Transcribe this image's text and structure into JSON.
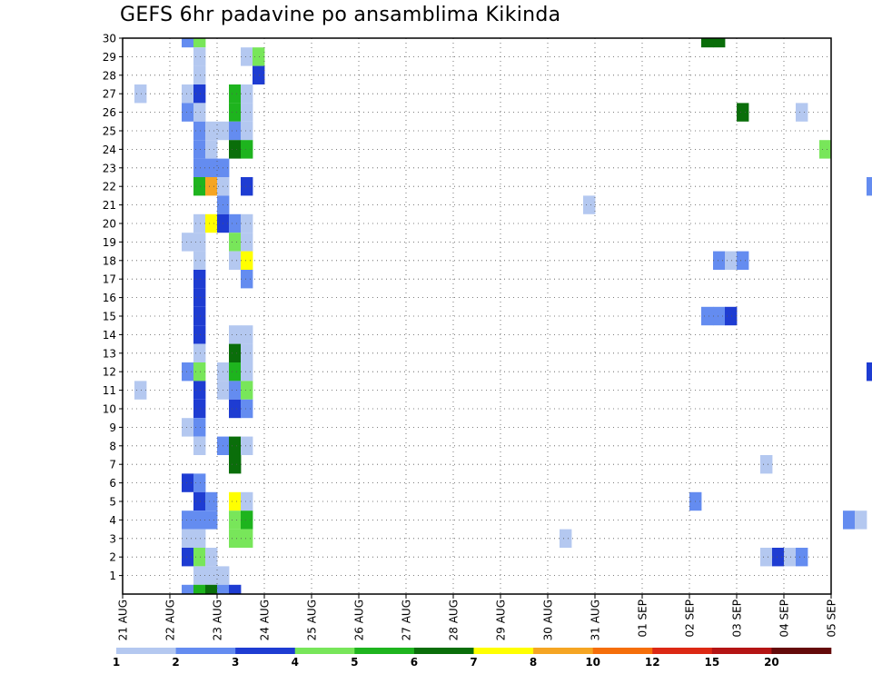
{
  "chart_data": {
    "type": "heatmap",
    "title": "GEFS 6hr padavine po ansamblima Kikinda",
    "xlabel": "",
    "ylabel": "",
    "x_ticks": [
      "21 AUG",
      "22 AUG",
      "23 AUG",
      "24 AUG",
      "25 AUG",
      "26 AUG",
      "27 AUG",
      "28 AUG",
      "29 AUG",
      "30 AUG",
      "31 AUG",
      "01 SEP",
      "02 SEP",
      "03 SEP",
      "04 SEP",
      "05 SEP"
    ],
    "y_ticks": [
      1,
      2,
      3,
      4,
      5,
      6,
      7,
      8,
      9,
      10,
      11,
      12,
      13,
      14,
      15,
      16,
      17,
      18,
      19,
      20,
      21,
      22,
      23,
      24,
      25,
      26,
      27,
      28,
      29,
      30
    ],
    "ylim": [
      0,
      30
    ],
    "time_steps_per_day": 4,
    "grid": "dotted",
    "legend": {
      "placement": "bottom",
      "thresholds": [
        "1",
        "2",
        "3",
        "4",
        "5",
        "6",
        "7",
        "8",
        "10",
        "12",
        "15",
        "20"
      ],
      "colors": [
        "#b4c8f0",
        "#648cf0",
        "#1e3cd2",
        "#78e65a",
        "#1eb41e",
        "#0a6e0a",
        "#ffff00",
        "#f5a523",
        "#f56e0a",
        "#dc2814",
        "#b41414",
        "#640a0a"
      ]
    },
    "cells": [
      {
        "m": 30,
        "t": [
          [
            5,
            1
          ],
          [
            6,
            3
          ],
          [
            49,
            5
          ],
          [
            50,
            5
          ],
          [
            78,
            0
          ]
        ]
      },
      {
        "m": 29,
        "t": [
          [
            6,
            0
          ],
          [
            10,
            0
          ],
          [
            11,
            3
          ],
          [
            72,
            4
          ],
          [
            73,
            5
          ],
          [
            74,
            1
          ],
          [
            76,
            0
          ],
          [
            77,
            1
          ]
        ]
      },
      {
        "m": 28,
        "t": [
          [
            6,
            0
          ],
          [
            11,
            2
          ],
          [
            73,
            0
          ],
          [
            80,
            1
          ]
        ]
      },
      {
        "m": 27,
        "t": [
          [
            1,
            0
          ],
          [
            5,
            0
          ],
          [
            6,
            2
          ],
          [
            9,
            4
          ],
          [
            10,
            0
          ],
          [
            64,
            2
          ],
          [
            69,
            1
          ],
          [
            75,
            1
          ],
          [
            76,
            0
          ],
          [
            107,
            1
          ]
        ]
      },
      {
        "m": 26,
        "t": [
          [
            5,
            1
          ],
          [
            6,
            0
          ],
          [
            9,
            4
          ],
          [
            10,
            0
          ],
          [
            52,
            5
          ],
          [
            57,
            0
          ],
          [
            76,
            1
          ],
          [
            81,
            6
          ],
          [
            82,
            8
          ],
          [
            84,
            8
          ],
          [
            85,
            2
          ],
          [
            86,
            1
          ]
        ]
      },
      {
        "m": 25,
        "t": [
          [
            6,
            1
          ],
          [
            7,
            0
          ],
          [
            8,
            0
          ],
          [
            9,
            1
          ],
          [
            10,
            0
          ]
        ]
      },
      {
        "m": 24,
        "t": [
          [
            6,
            1
          ],
          [
            7,
            0
          ],
          [
            9,
            5
          ],
          [
            10,
            4
          ],
          [
            59,
            3
          ],
          [
            70,
            0
          ],
          [
            71,
            0
          ],
          [
            72,
            0
          ],
          [
            73,
            2
          ],
          [
            74,
            4
          ],
          [
            75,
            6
          ],
          [
            108,
            0
          ],
          [
            109,
            2
          ],
          [
            110,
            0
          ]
        ]
      },
      {
        "m": 23,
        "t": [
          [
            6,
            1
          ],
          [
            7,
            1
          ],
          [
            8,
            1
          ],
          [
            71,
            0
          ]
        ]
      },
      {
        "m": 22,
        "t": [
          [
            6,
            4
          ],
          [
            7,
            7
          ],
          [
            8,
            0
          ],
          [
            10,
            2
          ],
          [
            63,
            1
          ],
          [
            71,
            4
          ],
          [
            72,
            0
          ],
          [
            83,
            0
          ]
        ]
      },
      {
        "m": 21,
        "t": [
          [
            8,
            1
          ],
          [
            39,
            0
          ],
          [
            83,
            0
          ],
          [
            84,
            3
          ]
        ]
      },
      {
        "m": 20,
        "t": [
          [
            6,
            0
          ],
          [
            7,
            6
          ],
          [
            8,
            2
          ],
          [
            9,
            1
          ],
          [
            10,
            0
          ],
          [
            73,
            0
          ],
          [
            75,
            2
          ],
          [
            107,
            0
          ]
        ]
      },
      {
        "m": 19,
        "t": [
          [
            5,
            0
          ],
          [
            6,
            0
          ],
          [
            9,
            3
          ],
          [
            10,
            0
          ],
          [
            84,
            0
          ]
        ]
      },
      {
        "m": 18,
        "t": [
          [
            6,
            0
          ],
          [
            9,
            0
          ],
          [
            10,
            6
          ],
          [
            50,
            1
          ],
          [
            51,
            0
          ],
          [
            52,
            1
          ],
          [
            111,
            0
          ]
        ]
      },
      {
        "m": 17,
        "t": [
          [
            6,
            2
          ],
          [
            10,
            1
          ],
          [
            74,
            3
          ]
        ]
      },
      {
        "m": 16,
        "t": [
          [
            6,
            2
          ],
          [
            80,
            0
          ]
        ]
      },
      {
        "m": 15,
        "t": [
          [
            6,
            2
          ],
          [
            49,
            1
          ],
          [
            50,
            1
          ],
          [
            51,
            2
          ],
          [
            76,
            0
          ],
          [
            111,
            0
          ]
        ]
      },
      {
        "m": 14,
        "t": [
          [
            6,
            2
          ],
          [
            9,
            0
          ],
          [
            10,
            0
          ]
        ]
      },
      {
        "m": 13,
        "t": [
          [
            6,
            0
          ],
          [
            9,
            5
          ],
          [
            10,
            0
          ]
        ]
      },
      {
        "m": 12,
        "t": [
          [
            5,
            1
          ],
          [
            6,
            3
          ],
          [
            8,
            0
          ],
          [
            9,
            4
          ],
          [
            10,
            0
          ],
          [
            63,
            2
          ],
          [
            67,
            8
          ],
          [
            68,
            0
          ],
          [
            76,
            0
          ],
          [
            80,
            0
          ]
        ]
      },
      {
        "m": 11,
        "t": [
          [
            1,
            0
          ],
          [
            6,
            2
          ],
          [
            8,
            0
          ],
          [
            9,
            1
          ],
          [
            10,
            3
          ],
          [
            80,
            2
          ]
        ]
      },
      {
        "m": 10,
        "t": [
          [
            6,
            2
          ],
          [
            9,
            2
          ],
          [
            10,
            1
          ],
          [
            66,
            2
          ],
          [
            80,
            1
          ],
          [
            81,
            0
          ]
        ]
      },
      {
        "m": 9,
        "t": [
          [
            5,
            0
          ],
          [
            6,
            1
          ],
          [
            68,
            0
          ],
          [
            96,
            0
          ]
        ]
      },
      {
        "m": 8,
        "t": [
          [
            6,
            0
          ],
          [
            8,
            1
          ],
          [
            9,
            5
          ],
          [
            10,
            0
          ],
          [
            90,
            1
          ],
          [
            93,
            0
          ],
          [
            99,
            1
          ],
          [
            100,
            5
          ],
          [
            105,
            4
          ]
        ]
      },
      {
        "m": 7,
        "t": [
          [
            9,
            5
          ],
          [
            54,
            0
          ],
          [
            68,
            7
          ],
          [
            74,
            4
          ],
          [
            111,
            0
          ]
        ]
      },
      {
        "m": 6,
        "t": [
          [
            5,
            2
          ],
          [
            6,
            1
          ],
          [
            74,
            0
          ],
          [
            75,
            0
          ],
          [
            82,
            3
          ],
          [
            84,
            3
          ]
        ]
      },
      {
        "m": 5,
        "t": [
          [
            6,
            2
          ],
          [
            7,
            1
          ],
          [
            9,
            6
          ],
          [
            10,
            0
          ],
          [
            48,
            1
          ],
          [
            82,
            3
          ],
          [
            107,
            0
          ]
        ]
      },
      {
        "m": 4,
        "t": [
          [
            5,
            1
          ],
          [
            6,
            1
          ],
          [
            7,
            1
          ],
          [
            9,
            3
          ],
          [
            10,
            4
          ],
          [
            61,
            1
          ],
          [
            62,
            0
          ],
          [
            82,
            0
          ]
        ]
      },
      {
        "m": 3,
        "t": [
          [
            5,
            0
          ],
          [
            6,
            0
          ],
          [
            9,
            3
          ],
          [
            10,
            3
          ],
          [
            37,
            0
          ],
          [
            68,
            1
          ],
          [
            75,
            1
          ],
          [
            83,
            0
          ],
          [
            84,
            3
          ],
          [
            96,
            0
          ],
          [
            111,
            2
          ]
        ]
      },
      {
        "m": 2,
        "t": [
          [
            5,
            2
          ],
          [
            6,
            3
          ],
          [
            7,
            0
          ],
          [
            54,
            0
          ],
          [
            55,
            2
          ],
          [
            56,
            0
          ],
          [
            57,
            1
          ],
          [
            70,
            2
          ],
          [
            75,
            1
          ],
          [
            76,
            2
          ],
          [
            82,
            0
          ]
        ]
      },
      {
        "m": 1,
        "t": [
          [
            6,
            0
          ],
          [
            7,
            0
          ],
          [
            8,
            0
          ],
          [
            83,
            1
          ]
        ]
      },
      {
        "m": 0,
        "t": [
          [
            5,
            1
          ],
          [
            6,
            4
          ],
          [
            7,
            5
          ],
          [
            8,
            1
          ],
          [
            9,
            2
          ],
          [
            106,
            2
          ],
          [
            107,
            1
          ],
          [
            108,
            0
          ],
          [
            109,
            0
          ]
        ]
      }
    ]
  }
}
